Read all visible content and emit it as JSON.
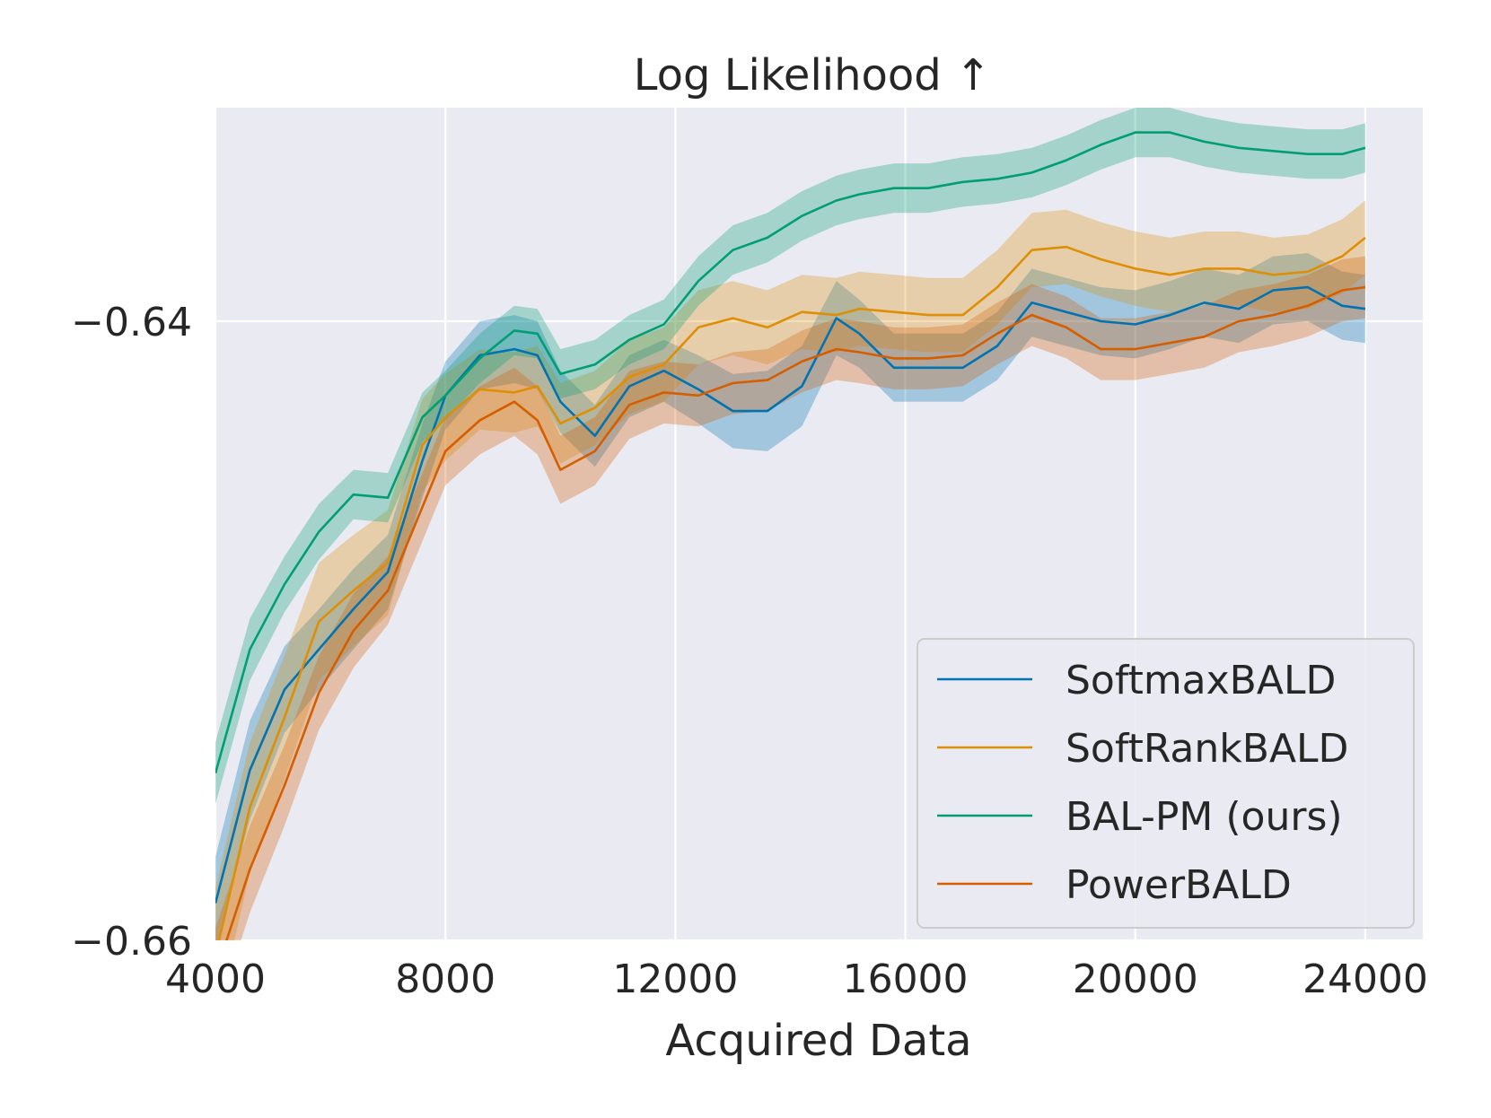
{
  "chart_data": {
    "type": "line",
    "title": "Log Likelihood ↑",
    "xlabel": "Acquired Data",
    "ylabel": "",
    "xlim": [
      4000,
      25000
    ],
    "ylim": [
      -0.66,
      -0.6331
    ],
    "xticks": [
      4000,
      8000,
      12000,
      16000,
      20000,
      24000
    ],
    "xtick_labels": [
      "4000",
      "8000",
      "12000",
      "16000",
      "20000",
      "24000"
    ],
    "yticks": [
      -0.66,
      -0.64
    ],
    "ytick_labels": [
      "−0.66",
      "−0.64"
    ],
    "grid": true,
    "legend_position": "lower-right",
    "colors": {
      "background": "#eaeaf2",
      "grid": "#ffffff",
      "SoftmaxBALD": "#0173b2",
      "SoftRankBALD": "#de8f05",
      "BAL-PM (ours)": "#029e73",
      "PowerBALD": "#d55e00"
    },
    "x": [
      4000,
      4600,
      5200,
      5800,
      6400,
      7000,
      7600,
      8000,
      8600,
      9200,
      9600,
      10000,
      10600,
      11200,
      11800,
      12400,
      13000,
      13600,
      14200,
      14800,
      15200,
      15800,
      16400,
      17000,
      17600,
      18200,
      18800,
      19400,
      20000,
      20600,
      21200,
      21800,
      22400,
      23000,
      23600,
      24000
    ],
    "series": [
      {
        "name": "SoftmaxBALD",
        "values": [
          -0.6588,
          -0.6545,
          -0.6519,
          -0.6506,
          -0.6493,
          -0.6481,
          -0.6445,
          -0.6424,
          -0.6411,
          -0.6409,
          -0.6411,
          -0.6426,
          -0.6437,
          -0.6421,
          -0.6416,
          -0.6422,
          -0.6429,
          -0.6429,
          -0.6421,
          -0.6399,
          -0.6404,
          -0.6415,
          -0.6415,
          -0.6415,
          -0.6408,
          -0.6394,
          -0.6397,
          -0.64,
          -0.6401,
          -0.6398,
          -0.6394,
          -0.6396,
          -0.639,
          -0.6389,
          -0.6395,
          -0.6396
        ],
        "band": [
          0.0015,
          0.0016,
          0.0014,
          0.0013,
          0.0013,
          0.0012,
          0.0012,
          0.0011,
          0.0011,
          0.0011,
          0.0011,
          0.001,
          0.001,
          0.001,
          0.001,
          0.0011,
          0.0012,
          0.0013,
          0.0013,
          0.0012,
          0.0011,
          0.0011,
          0.0011,
          0.0011,
          0.0011,
          0.0011,
          0.0011,
          0.0011,
          0.0011,
          0.0011,
          0.0011,
          0.0011,
          0.0011,
          0.0011,
          0.0011,
          0.0011
        ]
      },
      {
        "name": "SoftRankBALD",
        "values": [
          -0.6605,
          -0.6557,
          -0.6528,
          -0.6497,
          -0.6487,
          -0.6478,
          -0.644,
          -0.6431,
          -0.6422,
          -0.6423,
          -0.6421,
          -0.6433,
          -0.6428,
          -0.6418,
          -0.6414,
          -0.6402,
          -0.6399,
          -0.6402,
          -0.6397,
          -0.6398,
          -0.6396,
          -0.6397,
          -0.6398,
          -0.6398,
          -0.6389,
          -0.6377,
          -0.6376,
          -0.638,
          -0.6383,
          -0.6385,
          -0.6383,
          -0.6383,
          -0.6385,
          -0.6384,
          -0.6379,
          -0.6373
        ],
        "band": [
          0.0022,
          0.0021,
          0.002,
          0.0019,
          0.0018,
          0.0017,
          0.0015,
          0.0014,
          0.0013,
          0.0013,
          0.0013,
          0.0013,
          0.0012,
          0.0012,
          0.0012,
          0.0012,
          0.0012,
          0.0012,
          0.0012,
          0.0012,
          0.0012,
          0.0012,
          0.0012,
          0.0012,
          0.0012,
          0.0012,
          0.0012,
          0.0012,
          0.0012,
          0.0012,
          0.0012,
          0.0012,
          0.0012,
          0.0012,
          0.0012,
          0.0012
        ]
      },
      {
        "name": "BAL-PM (ours)",
        "values": [
          -0.6546,
          -0.6506,
          -0.6485,
          -0.6468,
          -0.6456,
          -0.6457,
          -0.6431,
          -0.6424,
          -0.6412,
          -0.6403,
          -0.6404,
          -0.6417,
          -0.6414,
          -0.6406,
          -0.6401,
          -0.6387,
          -0.6377,
          -0.6373,
          -0.6366,
          -0.6361,
          -0.6359,
          -0.6357,
          -0.6357,
          -0.6355,
          -0.6354,
          -0.6352,
          -0.6348,
          -0.6343,
          -0.6339,
          -0.6339,
          -0.6342,
          -0.6344,
          -0.6345,
          -0.6346,
          -0.6346,
          -0.6344
        ],
        "band": [
          0.001,
          0.001,
          0.0009,
          0.0009,
          0.0008,
          0.0008,
          0.0008,
          0.0008,
          0.0008,
          0.0008,
          0.0008,
          0.0008,
          0.0008,
          0.0008,
          0.0008,
          0.0008,
          0.0008,
          0.0008,
          0.0008,
          0.0008,
          0.0008,
          0.0008,
          0.0008,
          0.0008,
          0.0008,
          0.0008,
          0.0008,
          0.0008,
          0.0008,
          0.0008,
          0.0008,
          0.0008,
          0.0008,
          0.0008,
          0.0008,
          0.0008
        ]
      },
      {
        "name": "PowerBALD",
        "values": [
          -0.6611,
          -0.6577,
          -0.655,
          -0.652,
          -0.65,
          -0.6487,
          -0.646,
          -0.6442,
          -0.6432,
          -0.6426,
          -0.6432,
          -0.6448,
          -0.6442,
          -0.6427,
          -0.6423,
          -0.6424,
          -0.642,
          -0.6419,
          -0.6413,
          -0.6409,
          -0.641,
          -0.6412,
          -0.6412,
          -0.6411,
          -0.6404,
          -0.6398,
          -0.6402,
          -0.6409,
          -0.6409,
          -0.6407,
          -0.6405,
          -0.64,
          -0.6398,
          -0.6395,
          -0.639,
          -0.6389
        ],
        "band": [
          0.0015,
          0.0014,
          0.0013,
          0.0012,
          0.0012,
          0.0011,
          0.0011,
          0.0011,
          0.0011,
          0.0011,
          0.0011,
          0.0011,
          0.0011,
          0.0011,
          0.001,
          0.001,
          0.001,
          0.001,
          0.001,
          0.001,
          0.001,
          0.001,
          0.001,
          0.001,
          0.001,
          0.001,
          0.001,
          0.001,
          0.001,
          0.001,
          0.001,
          0.001,
          0.001,
          0.001,
          0.001,
          0.001
        ]
      }
    ]
  }
}
